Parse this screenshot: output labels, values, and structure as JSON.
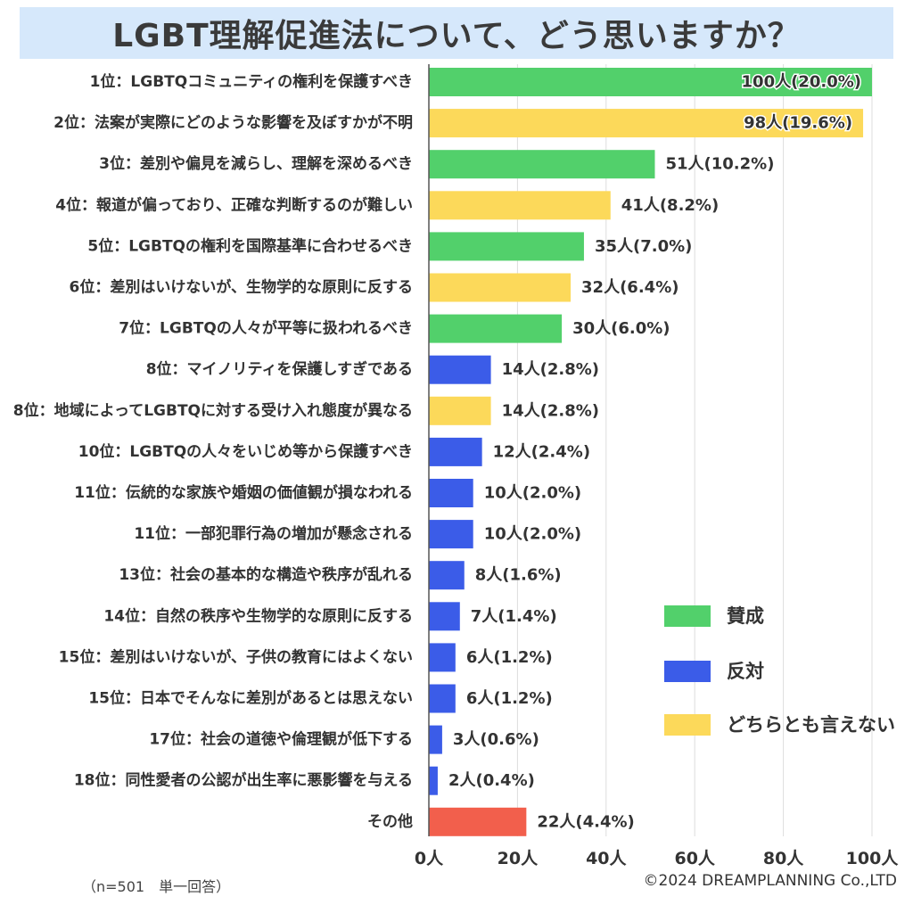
{
  "title": "LGBT理解促進法について、どう思いますか？",
  "footnote": "（n=501　単一回答）",
  "copyright": "©2024 DREAMPLANNING Co.,LTD",
  "colors": {
    "agree": "#52d06b",
    "oppose": "#3b5ce8",
    "neutral": "#fcd95a",
    "other": "#f25f4c",
    "grid": "#dddddd",
    "axis": "#555555",
    "text": "#333333"
  },
  "chart_data": {
    "type": "bar",
    "orientation": "horizontal",
    "xlim": [
      0,
      100
    ],
    "x_ticks": [
      "0人",
      "20人",
      "40人",
      "60人",
      "80人",
      "100人"
    ],
    "x_tick_values": [
      0,
      20,
      40,
      60,
      80,
      100
    ],
    "grid": true,
    "legend_position": "right",
    "legend": [
      {
        "key": "agree",
        "label": "賛成"
      },
      {
        "key": "oppose",
        "label": "反対"
      },
      {
        "key": "neutral",
        "label": "どちらとも言えない"
      }
    ],
    "categories": [
      "1位：LGBTQコミュニティの権利を保護すべき",
      "2位：法案が実際にどのような影響を及ぼすかが不明",
      "3位：差別や偏見を減らし、理解を深めるべき",
      "4位：報道が偏っており、正確な判断するのが難しい",
      "5位：LGBTQの権利を国際基準に合わせるべき",
      "6位：差別はいけないが、生物学的な原則に反する",
      "7位：LGBTQの人々が平等に扱われるべき",
      "8位：マイノリティを保護しすぎである",
      "8位：地域によってLGBTQに対する受け入れ態度が異なる",
      "10位：LGBTQの人々をいじめ等から保護すべき",
      "11位：伝統的な家族や婚姻の価値観が損なわれる",
      "11位：一部犯罪行為の増加が懸念される",
      "13位：社会の基本的な構造や秩序が乱れる",
      "14位：自然の秩序や生物学的な原則に反する",
      "15位：差別はいけないが、子供の教育にはよくない",
      "15位：日本でそんなに差別があるとは思えない",
      "17位：社会の道徳や倫理観が低下する",
      "18位：同性愛者の公認が出生率に悪影響を与える",
      "その他"
    ],
    "values": [
      100,
      98,
      51,
      41,
      35,
      32,
      30,
      14,
      14,
      12,
      10,
      10,
      8,
      7,
      6,
      6,
      3,
      2,
      22
    ],
    "value_labels": [
      "100人(20.0%)",
      "98人(19.6%)",
      "51人(10.2%)",
      "41人(8.2%)",
      "35人(7.0%)",
      "32人(6.4%)",
      "30人(6.0%)",
      "14人(2.8%)",
      "14人(2.8%)",
      "12人(2.4%)",
      "10人(2.0%)",
      "10人(2.0%)",
      "8人(1.6%)",
      "7人(1.4%)",
      "6人(1.2%)",
      "6人(1.2%)",
      "3人(0.6%)",
      "2人(0.4%)",
      "22人(4.4%)"
    ],
    "groups": [
      "agree",
      "neutral",
      "agree",
      "neutral",
      "agree",
      "neutral",
      "agree",
      "oppose",
      "neutral",
      "oppose",
      "oppose",
      "oppose",
      "oppose",
      "oppose",
      "oppose",
      "oppose",
      "oppose",
      "oppose",
      "other"
    ]
  }
}
